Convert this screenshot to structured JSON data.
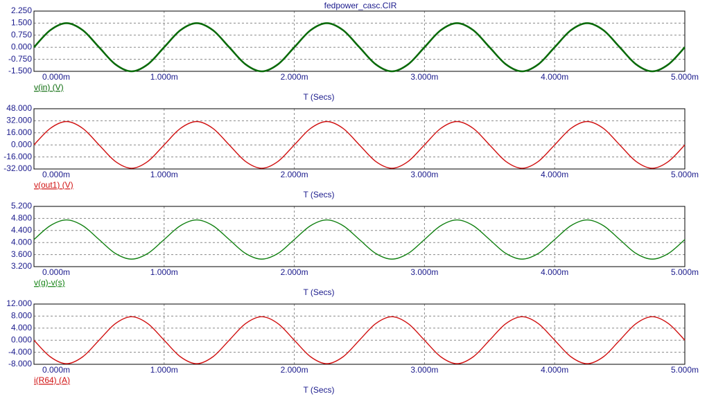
{
  "chart_data": [
    {
      "type": "line",
      "title": "fedpower_casc.CIR",
      "xlabel": "T (Secs)",
      "x": [
        0,
        0.000125,
        0.00025,
        0.000375,
        0.0005,
        0.000625,
        0.00075,
        0.000875,
        0.001,
        0.001125,
        0.00125,
        0.001375,
        0.0015,
        0.001625,
        0.00175,
        0.001875,
        0.002,
        0.002125,
        0.00225,
        0.002375,
        0.0025,
        0.002625,
        0.00275,
        0.002875,
        0.003,
        0.003125,
        0.00325,
        0.003375,
        0.0035,
        0.003625,
        0.00375,
        0.003875,
        0.004,
        0.004125,
        0.00425,
        0.004375,
        0.0045,
        0.004625,
        0.00475,
        0.004875,
        0.005
      ],
      "series": [
        {
          "name": "v(in) (V)",
          "color": "#0a6a0a",
          "values": [
            0,
            1.06,
            1.5,
            1.06,
            0,
            -1.06,
            -1.5,
            -1.06,
            0,
            1.06,
            1.5,
            1.06,
            0,
            -1.06,
            -1.5,
            -1.06,
            0,
            1.06,
            1.5,
            1.06,
            0,
            -1.06,
            -1.5,
            -1.06,
            0,
            1.06,
            1.5,
            1.06,
            0,
            -1.06,
            -1.5,
            -1.06,
            0,
            1.06,
            1.5,
            1.06,
            0,
            -1.06,
            -1.5,
            -1.06,
            0
          ]
        }
      ],
      "xlim": [
        0,
        0.005
      ],
      "xticks": [
        {
          "value": 0,
          "label": "0.000m"
        },
        {
          "value": 0.001,
          "label": "1.000m"
        },
        {
          "value": 0.002,
          "label": "2.000m"
        },
        {
          "value": 0.003,
          "label": "3.000m"
        },
        {
          "value": 0.004,
          "label": "4.000m"
        },
        {
          "value": 0.005,
          "label": "5.000m"
        }
      ],
      "ylim": [
        -1.5,
        2.25
      ],
      "yticks": [
        {
          "value": 2.25,
          "label": "2.250"
        },
        {
          "value": 1.5,
          "label": "1.500"
        },
        {
          "value": 0.75,
          "label": "0.750"
        },
        {
          "value": 0,
          "label": "0.000"
        },
        {
          "value": -0.75,
          "label": "-0.750"
        },
        {
          "value": -1.5,
          "label": "-1.500"
        }
      ],
      "grid": true
    },
    {
      "type": "line",
      "xlabel": "T (Secs)",
      "x": [
        0,
        0.000125,
        0.00025,
        0.000375,
        0.0005,
        0.000625,
        0.00075,
        0.000875,
        0.001,
        0.001125,
        0.00125,
        0.001375,
        0.0015,
        0.001625,
        0.00175,
        0.001875,
        0.002,
        0.002125,
        0.00225,
        0.002375,
        0.0025,
        0.002625,
        0.00275,
        0.002875,
        0.003,
        0.003125,
        0.00325,
        0.003375,
        0.0035,
        0.003625,
        0.00375,
        0.003875,
        0.004,
        0.004125,
        0.00425,
        0.004375,
        0.0045,
        0.004625,
        0.00475,
        0.004875,
        0.005
      ],
      "series": [
        {
          "name": "v(out1) (V)",
          "color": "#d01010",
          "values": [
            0,
            21.9,
            31,
            21.9,
            0,
            -21.9,
            -31,
            -21.9,
            0,
            21.9,
            31,
            21.9,
            0,
            -21.9,
            -31,
            -21.9,
            0,
            21.9,
            31,
            21.9,
            0,
            -21.9,
            -31,
            -21.9,
            0,
            21.9,
            31,
            21.9,
            0,
            -21.9,
            -31,
            -21.9,
            0,
            21.9,
            31,
            21.9,
            0,
            -21.9,
            -31,
            -21.9,
            0
          ]
        }
      ],
      "xlim": [
        0,
        0.005
      ],
      "xticks": [
        {
          "value": 0,
          "label": "0.000m"
        },
        {
          "value": 0.001,
          "label": "1.000m"
        },
        {
          "value": 0.002,
          "label": "2.000m"
        },
        {
          "value": 0.003,
          "label": "3.000m"
        },
        {
          "value": 0.004,
          "label": "4.000m"
        },
        {
          "value": 0.005,
          "label": "5.000m"
        }
      ],
      "ylim": [
        -32,
        48
      ],
      "yticks": [
        {
          "value": 48,
          "label": "48.000"
        },
        {
          "value": 32,
          "label": "32.000"
        },
        {
          "value": 16,
          "label": "16.000"
        },
        {
          "value": 0,
          "label": "0.000"
        },
        {
          "value": -16,
          "label": "-16.000"
        },
        {
          "value": -32,
          "label": "-32.000"
        }
      ],
      "grid": true
    },
    {
      "type": "line",
      "xlabel": "T (Secs)",
      "x": [
        0,
        0.000125,
        0.00025,
        0.000375,
        0.0005,
        0.000625,
        0.00075,
        0.000875,
        0.001,
        0.001125,
        0.00125,
        0.001375,
        0.0015,
        0.001625,
        0.00175,
        0.001875,
        0.002,
        0.002125,
        0.00225,
        0.002375,
        0.0025,
        0.002625,
        0.00275,
        0.002875,
        0.003,
        0.003125,
        0.00325,
        0.003375,
        0.0035,
        0.003625,
        0.00375,
        0.003875,
        0.004,
        0.004125,
        0.00425,
        0.004375,
        0.0045,
        0.004625,
        0.00475,
        0.004875,
        0.005
      ],
      "series": [
        {
          "name": "v(g)-v(s)",
          "color": "#108010",
          "values": [
            4.1,
            4.56,
            4.75,
            4.56,
            4.1,
            3.64,
            3.45,
            3.64,
            4.1,
            4.56,
            4.75,
            4.56,
            4.1,
            3.64,
            3.45,
            3.64,
            4.1,
            4.56,
            4.75,
            4.56,
            4.1,
            3.64,
            3.45,
            3.64,
            4.1,
            4.56,
            4.75,
            4.56,
            4.1,
            3.64,
            3.45,
            3.64,
            4.1,
            4.56,
            4.75,
            4.56,
            4.1,
            3.64,
            3.45,
            3.64,
            4.1
          ]
        }
      ],
      "xlim": [
        0,
        0.005
      ],
      "xticks": [
        {
          "value": 0,
          "label": "0.000m"
        },
        {
          "value": 0.001,
          "label": "1.000m"
        },
        {
          "value": 0.002,
          "label": "2.000m"
        },
        {
          "value": 0.003,
          "label": "3.000m"
        },
        {
          "value": 0.004,
          "label": "4.000m"
        },
        {
          "value": 0.005,
          "label": "5.000m"
        }
      ],
      "ylim": [
        3.2,
        5.2
      ],
      "yticks": [
        {
          "value": 5.2,
          "label": "5.200"
        },
        {
          "value": 4.8,
          "label": "4.800"
        },
        {
          "value": 4.4,
          "label": "4.400"
        },
        {
          "value": 4,
          "label": "4.000"
        },
        {
          "value": 3.6,
          "label": "3.600"
        },
        {
          "value": 3.2,
          "label": "3.200"
        }
      ],
      "grid": true
    },
    {
      "type": "line",
      "xlabel": "T (Secs)",
      "x": [
        0,
        0.000125,
        0.00025,
        0.000375,
        0.0005,
        0.000625,
        0.00075,
        0.000875,
        0.001,
        0.001125,
        0.00125,
        0.001375,
        0.0015,
        0.001625,
        0.00175,
        0.001875,
        0.002,
        0.002125,
        0.00225,
        0.002375,
        0.0025,
        0.002625,
        0.00275,
        0.002875,
        0.003,
        0.003125,
        0.00325,
        0.003375,
        0.0035,
        0.003625,
        0.00375,
        0.003875,
        0.004,
        0.004125,
        0.00425,
        0.004375,
        0.0045,
        0.004625,
        0.00475,
        0.004875,
        0.005
      ],
      "series": [
        {
          "name": "i(R64) (A)",
          "color": "#d01010",
          "values": [
            0,
            -5.5,
            -7.8,
            -5.5,
            0,
            5.5,
            7.8,
            5.5,
            0,
            -5.5,
            -7.8,
            -5.5,
            0,
            5.5,
            7.8,
            5.5,
            0,
            -5.5,
            -7.8,
            -5.5,
            0,
            5.5,
            7.8,
            5.5,
            0,
            -5.5,
            -7.8,
            -5.5,
            0,
            5.5,
            7.8,
            5.5,
            0,
            -5.5,
            -7.8,
            -5.5,
            0,
            5.5,
            7.8,
            5.5,
            0
          ]
        }
      ],
      "xlim": [
        0,
        0.005
      ],
      "xticks": [
        {
          "value": 0,
          "label": "0.000m"
        },
        {
          "value": 0.001,
          "label": "1.000m"
        },
        {
          "value": 0.002,
          "label": "2.000m"
        },
        {
          "value": 0.003,
          "label": "3.000m"
        },
        {
          "value": 0.004,
          "label": "4.000m"
        },
        {
          "value": 0.005,
          "label": "5.000m"
        }
      ],
      "ylim": [
        -8,
        12
      ],
      "yticks": [
        {
          "value": 12,
          "label": "12.000"
        },
        {
          "value": 8,
          "label": "8.000"
        },
        {
          "value": 4,
          "label": "4.000"
        },
        {
          "value": 0,
          "label": "0.000"
        },
        {
          "value": -4,
          "label": "-4.000"
        },
        {
          "value": -8,
          "label": "-8.000"
        }
      ],
      "grid": true
    }
  ]
}
